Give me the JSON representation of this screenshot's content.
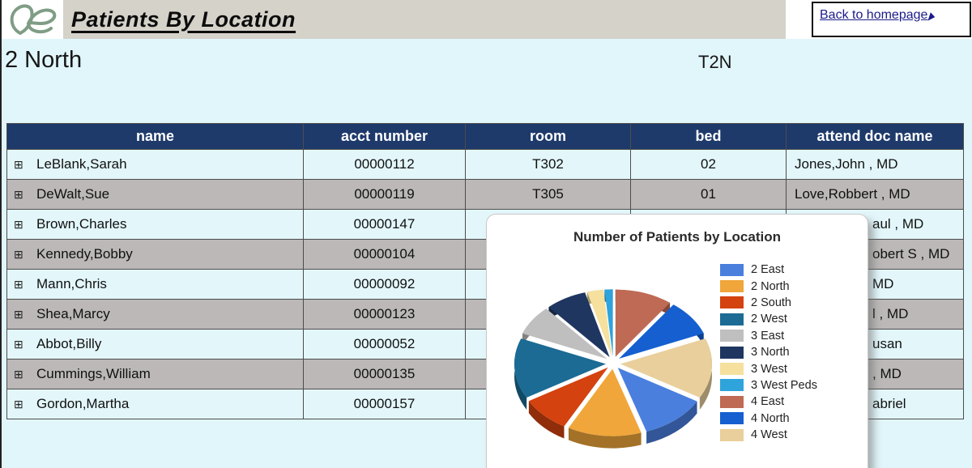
{
  "header": {
    "title": "Patients By Location",
    "logo": "leaf-logo",
    "back_label": "Back to homepage"
  },
  "page": {
    "location_title": "2 North",
    "location_code": "T2N"
  },
  "table": {
    "expand_icon": "⊞",
    "columns": [
      "name",
      "acct number",
      "room",
      "bed",
      "attend doc name"
    ],
    "rows": [
      {
        "name": "LeBlank,Sarah",
        "acct": "00000112",
        "room": "T302",
        "bed": "02",
        "doc": "Jones,John , MD",
        "doc_partial": false
      },
      {
        "name": "DeWalt,Sue",
        "acct": "00000119",
        "room": "T305",
        "bed": "01",
        "doc": "Love,Robbert , MD",
        "doc_partial": false
      },
      {
        "name": "Brown,Charles",
        "acct": "00000147",
        "room": "",
        "bed": "",
        "doc": "aul , MD",
        "doc_partial": true
      },
      {
        "name": "Kennedy,Bobby",
        "acct": "00000104",
        "room": "",
        "bed": "",
        "doc": "obert S , MD",
        "doc_partial": true
      },
      {
        "name": "Mann,Chris",
        "acct": "00000092",
        "room": "",
        "bed": "",
        "doc": "MD",
        "doc_partial": true
      },
      {
        "name": "Shea,Marcy",
        "acct": "00000123",
        "room": "",
        "bed": "",
        "doc": "l , MD",
        "doc_partial": true
      },
      {
        "name": "Abbot,Billy",
        "acct": "00000052",
        "room": "",
        "bed": "",
        "doc": "usan",
        "doc_partial": true
      },
      {
        "name": "Cummings,William",
        "acct": "00000135",
        "room": "",
        "bed": "",
        "doc": ", MD",
        "doc_partial": true
      },
      {
        "name": "Gordon,Martha",
        "acct": "00000157",
        "room": "",
        "bed": "",
        "doc": "abriel",
        "doc_partial": true
      }
    ]
  },
  "chart_data": {
    "type": "pie",
    "style": "3d-exploded",
    "title": "Number of Patients by Location",
    "legend_position": "right",
    "start_angle_deg": 0,
    "direction": "clockwise",
    "legend": [
      {
        "label": "2 East",
        "color": "#4a7fde"
      },
      {
        "label": "2 North",
        "color": "#f0a63a"
      },
      {
        "label": "2 South",
        "color": "#d4420f"
      },
      {
        "label": "2 West",
        "color": "#1b6b94"
      },
      {
        "label": "3 East",
        "color": "#bfbfbf"
      },
      {
        "label": "3 North",
        "color": "#1f3660"
      },
      {
        "label": "3 West",
        "color": "#f5e09e"
      },
      {
        "label": "3 West Peds",
        "color": "#2fa3db"
      },
      {
        "label": "4 East",
        "color": "#bf6a55"
      },
      {
        "label": "4 North",
        "color": "#155fd0"
      },
      {
        "label": "4 West",
        "color": "#e9cf9c"
      }
    ],
    "slices_clockwise_from_top": [
      {
        "label": "4 East",
        "value": 7,
        "color": "#bf6a55"
      },
      {
        "label": "4 North",
        "value": 6,
        "color": "#155fd0"
      },
      {
        "label": "4 West",
        "value": 10,
        "color": "#e9cf9c"
      },
      {
        "label": "2 East",
        "value": 8,
        "color": "#4a7fde"
      },
      {
        "label": "2 North",
        "value": 9,
        "color": "#f0a63a"
      },
      {
        "label": "2 South",
        "value": 6,
        "color": "#d4420f"
      },
      {
        "label": "2 West",
        "value": 10,
        "color": "#1b6b94"
      },
      {
        "label": "3 East",
        "value": 5,
        "color": "#bfbfbf"
      },
      {
        "label": "3 North",
        "value": 5,
        "color": "#1f3660"
      },
      {
        "label": "3 West",
        "value": 2,
        "color": "#f5e09e"
      },
      {
        "label": "3 West Peds",
        "value": 1,
        "color": "#2fa3db"
      }
    ]
  }
}
